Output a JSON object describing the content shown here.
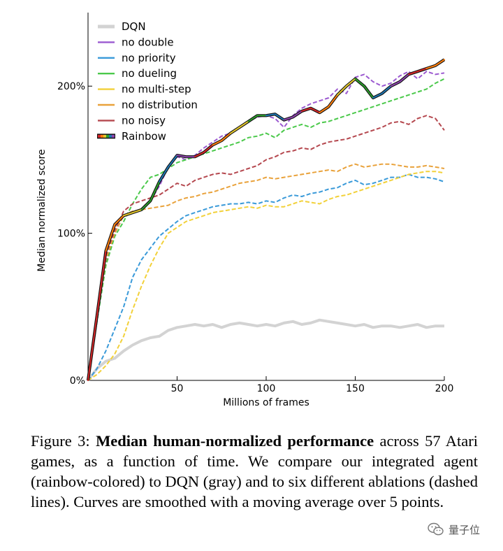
{
  "chart_data": {
    "type": "line",
    "xlabel": "Millions of frames",
    "ylabel": "Median normalized score",
    "xlim": [
      0,
      200
    ],
    "ylim": [
      0,
      250
    ],
    "xticks": [
      50,
      100,
      150,
      200
    ],
    "xtick_labels": [
      "50",
      "100",
      "150",
      "200"
    ],
    "yticks": [
      0,
      100,
      200
    ],
    "ytick_labels": [
      "0%",
      "100%",
      "200%"
    ],
    "grid": false,
    "legend_position": "top-left",
    "x": [
      0,
      5,
      10,
      15,
      20,
      25,
      30,
      35,
      40,
      45,
      50,
      55,
      60,
      65,
      70,
      75,
      80,
      85,
      90,
      95,
      100,
      105,
      110,
      115,
      120,
      125,
      130,
      135,
      140,
      145,
      150,
      155,
      160,
      165,
      170,
      175,
      180,
      185,
      190,
      195,
      200
    ],
    "series": [
      {
        "name": "DQN",
        "color": "#d3d3d3",
        "style": "solid",
        "values": [
          0,
          8,
          13,
          15,
          20,
          24,
          27,
          29,
          30,
          34,
          36,
          37,
          38,
          37,
          38,
          36,
          38,
          39,
          38,
          37,
          38,
          37,
          39,
          40,
          38,
          39,
          41,
          40,
          39,
          38,
          37,
          38,
          36,
          37,
          37,
          36,
          37,
          38,
          36,
          37,
          37
        ]
      },
      {
        "name": "no double",
        "color": "#9b59d0",
        "style": "dashed",
        "values": [
          0,
          40,
          80,
          100,
          112,
          114,
          116,
          122,
          132,
          145,
          152,
          150,
          153,
          158,
          162,
          166,
          168,
          172,
          176,
          179,
          180,
          178,
          172,
          180,
          185,
          188,
          190,
          192,
          198,
          195,
          206,
          208,
          203,
          200,
          202,
          207,
          210,
          205,
          210,
          208,
          209
        ]
      },
      {
        "name": "no priority",
        "color": "#3a9ad9",
        "style": "dashed",
        "values": [
          0,
          8,
          20,
          35,
          50,
          70,
          82,
          90,
          98,
          103,
          108,
          112,
          114,
          116,
          118,
          119,
          120,
          120,
          121,
          120,
          122,
          121,
          124,
          126,
          125,
          127,
          128,
          130,
          131,
          134,
          136,
          133,
          134,
          136,
          138,
          138,
          140,
          138,
          138,
          137,
          135
        ]
      },
      {
        "name": "no dueling",
        "color": "#4bc94b",
        "style": "dashed",
        "values": [
          0,
          40,
          78,
          98,
          108,
          120,
          130,
          138,
          140,
          144,
          148,
          150,
          152,
          154,
          156,
          158,
          160,
          162,
          165,
          166,
          168,
          165,
          170,
          172,
          174,
          172,
          175,
          176,
          178,
          180,
          182,
          184,
          186,
          188,
          190,
          192,
          194,
          196,
          198,
          202,
          205
        ]
      },
      {
        "name": "no multi-step",
        "color": "#f2d13a",
        "style": "dashed",
        "values": [
          0,
          4,
          10,
          18,
          30,
          48,
          64,
          78,
          90,
          100,
          104,
          108,
          110,
          112,
          114,
          115,
          116,
          117,
          118,
          117,
          119,
          118,
          118,
          120,
          122,
          121,
          120,
          123,
          125,
          126,
          128,
          130,
          132,
          134,
          136,
          138,
          140,
          141,
          142,
          142,
          141
        ]
      },
      {
        "name": "no distribution",
        "color": "#e9a23b",
        "style": "dashed",
        "values": [
          0,
          42,
          82,
          100,
          112,
          115,
          116,
          117,
          118,
          119,
          122,
          124,
          125,
          127,
          128,
          130,
          132,
          134,
          135,
          136,
          138,
          137,
          138,
          139,
          140,
          141,
          142,
          143,
          142,
          145,
          147,
          145,
          146,
          147,
          147,
          146,
          145,
          145,
          146,
          145,
          144
        ]
      },
      {
        "name": "no noisy",
        "color": "#b5484f",
        "style": "dashed",
        "values": [
          0,
          42,
          85,
          102,
          115,
          120,
          122,
          124,
          126,
          130,
          134,
          132,
          136,
          138,
          140,
          141,
          140,
          142,
          144,
          146,
          150,
          152,
          155,
          156,
          158,
          157,
          160,
          162,
          163,
          164,
          166,
          168,
          170,
          172,
          175,
          176,
          174,
          178,
          180,
          178,
          170
        ]
      },
      {
        "name": "Rainbow",
        "color": "#2a7a3a",
        "style": "rainbow",
        "values": [
          0,
          44,
          88,
          106,
          112,
          114,
          116,
          122,
          135,
          145,
          153,
          152,
          152,
          155,
          160,
          163,
          168,
          172,
          176,
          180,
          180,
          181,
          177,
          179,
          183,
          185,
          182,
          186,
          194,
          200,
          205,
          200,
          192,
          195,
          200,
          203,
          208,
          210,
          212,
          214,
          218
        ]
      }
    ]
  },
  "caption": {
    "prefix": "Figure 3: ",
    "bold": "Median human-normalized performance",
    "rest": " across 57 Atari games, as a function of time. We compare our integrated agent (rainbow-colored) to DQN (gray) and to six different ablations (dashed lines). Curves are smoothed with a moving average over 5 points."
  },
  "watermark": {
    "text": "量子位",
    "icon": "wechat-icon"
  }
}
